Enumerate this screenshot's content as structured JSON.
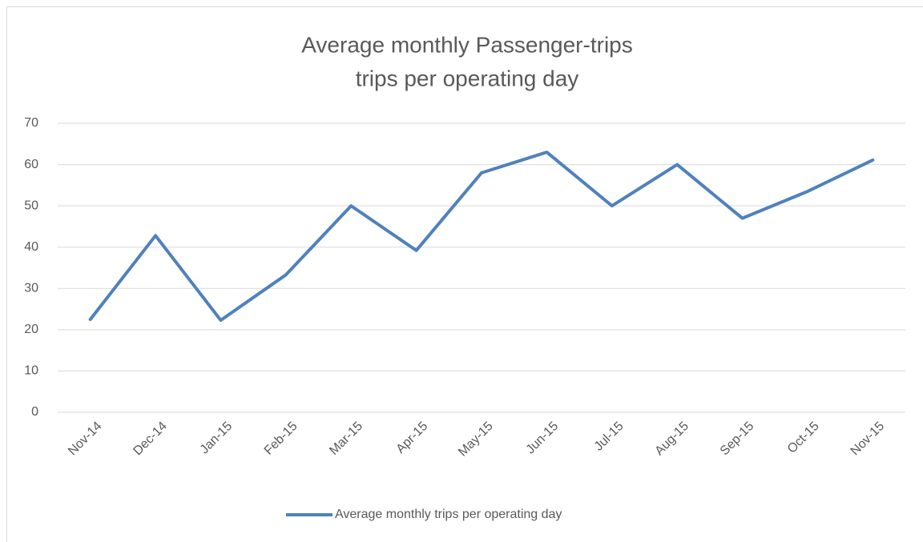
{
  "chart_data": {
    "type": "line",
    "title": [
      "Average monthly Passenger-trips",
      "trips per operating day"
    ],
    "categories": [
      "Nov-14",
      "Dec-14",
      "Jan-15",
      "Feb-15",
      "Mar-15",
      "Apr-15",
      "May-15",
      "Jun-15",
      "Jul-15",
      "Aug-15",
      "Sep-15",
      "Oct-15",
      "Nov-15"
    ],
    "series": [
      {
        "name": "Average monthly trips per operating day",
        "color": "#4f81bd",
        "values": [
          22.5,
          42.8,
          22.3,
          33.3,
          50,
          39.2,
          58,
          63,
          50,
          60,
          47,
          53.5,
          61.1
        ]
      }
    ],
    "ylim": [
      0,
      70
    ],
    "yticks": [
      0,
      10,
      20,
      30,
      40,
      50,
      60,
      70
    ],
    "grid": true,
    "legend": "bottom"
  }
}
